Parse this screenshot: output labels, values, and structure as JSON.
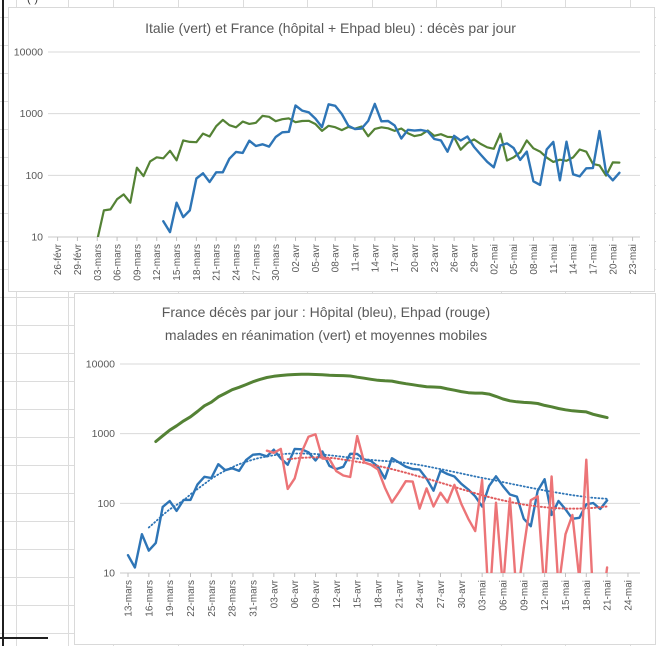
{
  "sheet": {
    "corner_text": "(-)"
  },
  "chart_data": [
    {
      "type": "line",
      "title": "Italie (vert) et France (hôpital + Ehpad bleu) : décès par jour",
      "y_scale": "log10",
      "ylim": [
        10,
        10000
      ],
      "y_tick_labels": [
        "10",
        "100",
        "1000",
        "10000"
      ],
      "grid": "horizontal",
      "legend": "none",
      "x_tick_step_days": 3,
      "x_tick_labels": [
        "26-févr",
        "29-févr",
        "03-mars",
        "06-mars",
        "09-mars",
        "12-mars",
        "15-mars",
        "18-mars",
        "21-mars",
        "24-mars",
        "27-mars",
        "30-mars",
        "02-avr",
        "05-avr",
        "08-avr",
        "11-avr",
        "14-avr",
        "17-avr",
        "20-avr",
        "23-avr",
        "26-avr",
        "29-avr",
        "02-mai",
        "05-mai",
        "08-mai",
        "11-mai",
        "14-mai",
        "17-mai",
        "20-mai",
        "23-mai"
      ],
      "series": [
        {
          "id": "italie",
          "name": "Italie décès par jour (vert)",
          "color": "#548235",
          "width": 2.2,
          "style": "solid",
          "start_day": 6,
          "values": [
            9,
            27,
            28,
            41,
            49,
            36,
            133,
            97,
            168,
            196,
            189,
            250,
            175,
            368,
            349,
            345,
            475,
            427,
            627,
            793,
            651,
            601,
            743,
            683,
            712,
            919,
            889,
            756,
            812,
            837,
            727,
            760,
            766,
            681,
            525,
            636,
            604,
            542,
            610,
            570,
            619,
            431,
            566,
            602,
            578,
            525,
            575,
            482,
            433,
            454,
            534,
            437,
            464,
            420,
            415,
            260,
            333,
            382,
            323,
            285,
            269,
            474,
            174,
            195,
            236,
            369,
            274,
            243,
            194,
            165,
            179,
            172,
            195,
            262,
            242,
            153,
            145,
            99,
            162,
            161
          ]
        },
        {
          "id": "france",
          "name": "France hôpital + Ehpad décès par jour (bleu)",
          "color": "#2e75b6",
          "width": 2.4,
          "style": "solid",
          "start_day": 16,
          "values": [
            18,
            12,
            36,
            21,
            27,
            89,
            108,
            78,
            112,
            112,
            186,
            240,
            231,
            365,
            299,
            319,
            292,
            418,
            499,
            509,
            1355,
            1120,
            1053,
            833,
            605,
            1417,
            1341,
            987,
            635,
            561,
            574,
            762,
            1438,
            753,
            761,
            642,
            395,
            547,
            531,
            544,
            516,
            389,
            369,
            242,
            437,
            367,
            427,
            289,
            218,
            166,
            135,
            306,
            330,
            278,
            178,
            243,
            80,
            70,
            263,
            348,
            83,
            351,
            104,
            96,
            130,
            131,
            524,
            110,
            83,
            110
          ]
        }
      ]
    },
    {
      "type": "line",
      "title_lines": [
        "France décès par jour : Hôpital (bleu), Ehpad (rouge)",
        "malades en réanimation (vert) et moyennes mobiles"
      ],
      "y_scale": "log10",
      "ylim": [
        10,
        10000
      ],
      "y_tick_labels": [
        "10",
        "100",
        "1000",
        "10000"
      ],
      "grid": "horizontal",
      "legend": "none",
      "x_tick_step_days": 3,
      "x_tick_labels": [
        "13-mars",
        "16-mars",
        "19-mars",
        "22-mars",
        "25-mars",
        "28-mars",
        "31-mars",
        "03-avr",
        "06-avr",
        "09-avr",
        "12-avr",
        "15-avr",
        "18-avr",
        "21-avr",
        "24-avr",
        "27-avr",
        "30-avr",
        "03-mai",
        "06-mai",
        "09-mai",
        "12-mai",
        "15-mai",
        "18-mai",
        "21-mai",
        "24-mai"
      ],
      "series": [
        {
          "id": "rea",
          "name": "Malades en réanimation (vert)",
          "color": "#548235",
          "width": 3,
          "style": "solid",
          "start_day": 4,
          "values": [
            771,
            931,
            1122,
            1297,
            1525,
            1746,
            2082,
            2516,
            2827,
            3375,
            3787,
            4273,
            4632,
            5056,
            5565,
            6017,
            6399,
            6662,
            6838,
            6978,
            7072,
            7131,
            7148,
            7066,
            7004,
            6883,
            6845,
            6821,
            6730,
            6457,
            6248,
            6027,
            5833,
            5744,
            5683,
            5433,
            5218,
            5053,
            4870,
            4725,
            4682,
            4608,
            4387,
            4207,
            4019,
            3878,
            3827,
            3819,
            3696,
            3430,
            3147,
            2961,
            2868,
            2812,
            2776,
            2712,
            2542,
            2428,
            2299,
            2203,
            2132,
            2087,
            2053,
            1894,
            1794,
            1701
          ]
        },
        {
          "id": "hopital_mm",
          "name": "Hôpital moyenne mobile (bleu pointillé)",
          "color": "#2e75b6",
          "width": 1.8,
          "style": "dotted",
          "start_day": 3,
          "values": [
            45,
            55,
            68,
            82,
            95,
            110,
            135,
            160,
            190,
            225,
            260,
            295,
            330,
            365,
            395,
            425,
            450,
            470,
            490,
            505,
            515,
            520,
            520,
            515,
            510,
            500,
            490,
            478,
            465,
            452,
            440,
            430,
            420,
            412,
            405,
            398,
            390,
            380,
            368,
            355,
            340,
            325,
            310,
            296,
            282,
            268,
            255,
            243,
            232,
            222,
            212,
            202,
            192,
            183,
            175,
            167,
            160,
            153,
            147,
            141,
            136,
            131,
            127,
            123,
            120,
            118,
            116
          ]
        },
        {
          "id": "hopital",
          "name": "Hôpital décès par jour (bleu)",
          "color": "#2e75b6",
          "width": 2.4,
          "style": "solid",
          "start_day": 0,
          "values": [
            18,
            12,
            36,
            21,
            27,
            89,
            108,
            78,
            112,
            112,
            186,
            240,
            231,
            365,
            299,
            319,
            292,
            418,
            499,
            509,
            471,
            588,
            441,
            357,
            605,
            597,
            541,
            412,
            554,
            345,
            310,
            335,
            514,
            512,
            427,
            405,
            336,
            227,
            444,
            387,
            336,
            311,
            305,
            226,
            152,
            295,
            264,
            243,
            191,
            158,
            126,
            90,
            178,
            244,
            176,
            134,
            125,
            60,
            47,
            152,
            222,
            68,
            108,
            82,
            60,
            62,
            97,
            101,
            83,
            110
          ]
        },
        {
          "id": "ehpad_mm",
          "name": "Ehpad moyenne mobile (rouge pointillé)",
          "color": "#e05a5c",
          "width": 2,
          "style": "dotted",
          "start_day": 23,
          "values": [
            430,
            440,
            450,
            455,
            458,
            455,
            450,
            440,
            425,
            410,
            395,
            380,
            362,
            345,
            327,
            310,
            292,
            275,
            258,
            242,
            227,
            212,
            198,
            185,
            172,
            160,
            150,
            140,
            131,
            123,
            116,
            110,
            105,
            100,
            96,
            93,
            90,
            88,
            86,
            85,
            84,
            84,
            84,
            85,
            86,
            88,
            90
          ]
        },
        {
          "id": "ehpad",
          "name": "Ehpad décès par jour (rouge)",
          "color": "#ec7477",
          "width": 2.4,
          "style": "solid",
          "start_day": 20,
          "values": [
            570,
            532,
            605,
            161,
            228,
            540,
            905,
            980,
            440,
            433,
            290,
            251,
            239,
            924,
            390,
            356,
            306,
            168,
            103,
            144,
            208,
            205,
            84,
            164,
            90,
            142,
            103,
            184,
            98,
            60,
            40,
            216,
            3,
            102,
            6,
            118,
            4,
            23,
            111,
            126,
            5,
            243,
            6,
            36,
            68,
            8,
            423,
            4,
            2,
            12
          ]
        }
      ]
    }
  ]
}
